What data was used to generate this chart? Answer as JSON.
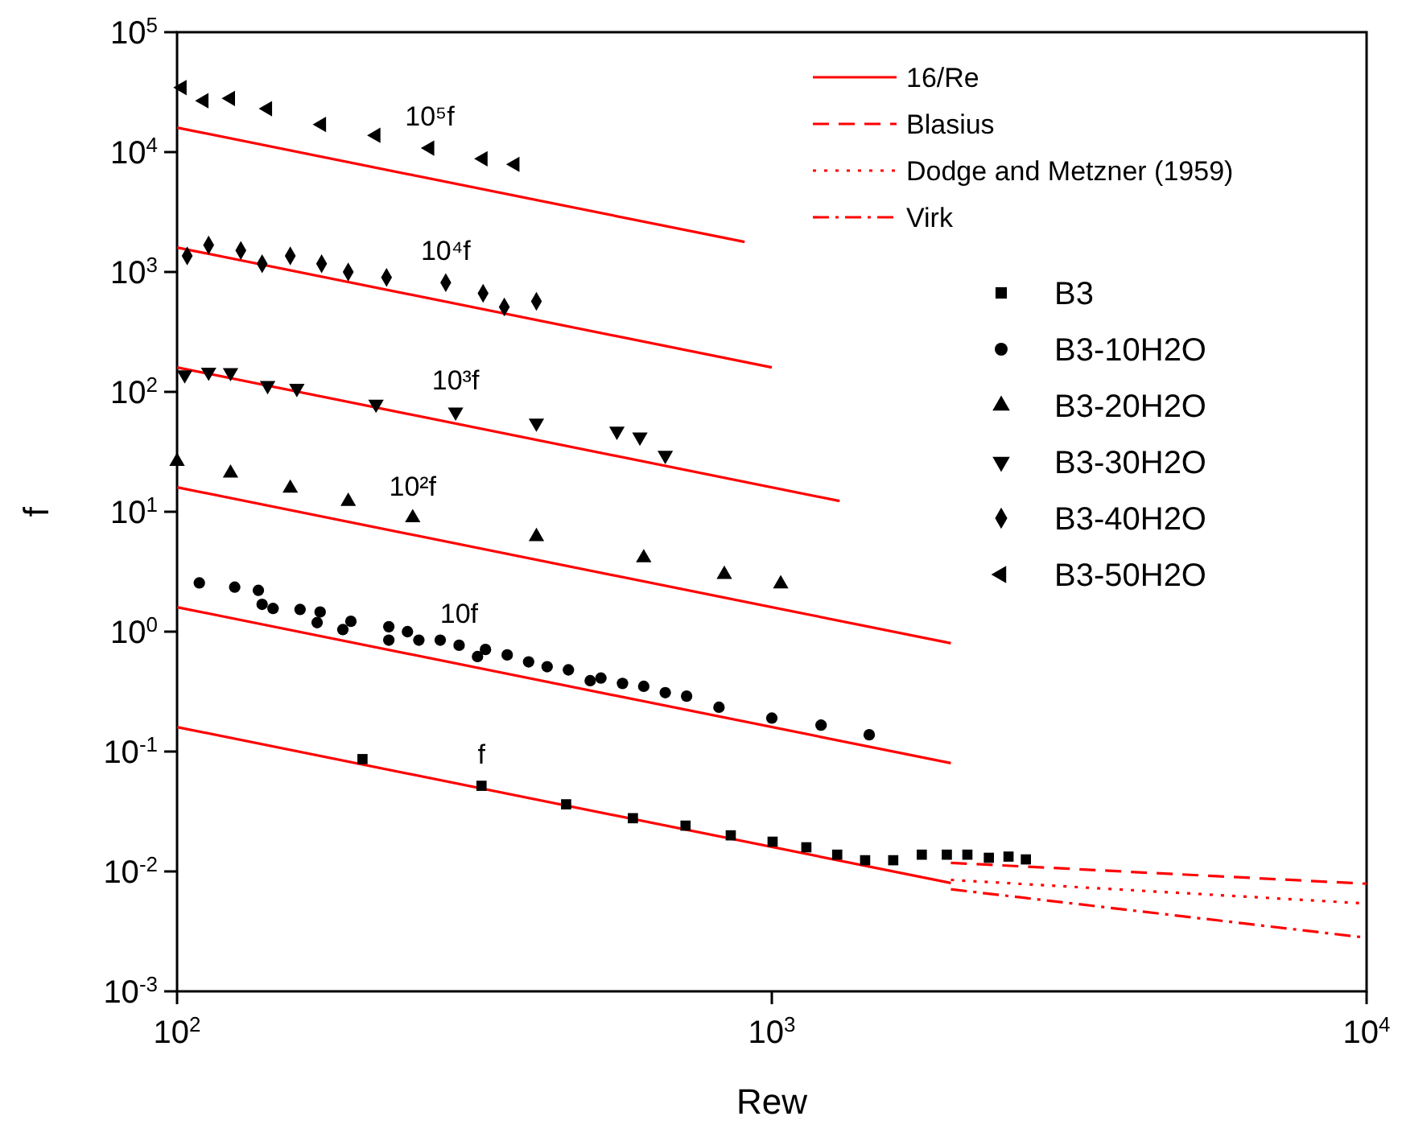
{
  "chart_data": {
    "type": "scatter",
    "xlabel": "Rew",
    "ylabel": "f",
    "log": "xy",
    "legend": "top right",
    "xlim": [
      100,
      10000
    ],
    "ylim": [
      0.001,
      100000
    ],
    "xticks": [
      {
        "value": 100,
        "label": "10$^{2}$"
      },
      {
        "value": 1000,
        "label": "10$^{3}$"
      },
      {
        "value": 10000,
        "label": "10$^{4}$"
      }
    ],
    "yticks": [
      {
        "value": 0.001,
        "label": "10$^{-3}$"
      },
      {
        "value": 0.01,
        "label": "10$^{-2}$"
      },
      {
        "value": 0.1,
        "label": "10$^{-1}$"
      },
      {
        "value": 1,
        "label": "10$^{0}$"
      },
      {
        "value": 10,
        "label": "10$^{1}$"
      },
      {
        "value": 100,
        "label": "10$^{2}$"
      },
      {
        "value": 1000,
        "label": "10$^{3}$"
      },
      {
        "value": 10000,
        "label": "10$^{4}$"
      },
      {
        "value": 100000,
        "label": "10$^{5}$"
      }
    ],
    "series": [
      {
        "name": "16/Re",
        "type": "line",
        "line_style": "solid",
        "color": "#ff0000",
        "x": [
          100,
          2000
        ],
        "values": [
          0.16,
          0.008
        ]
      },
      {
        "type": "line",
        "line_style": "solid",
        "color": "#ff0000",
        "x": [
          100,
          2000
        ],
        "values": [
          1.6,
          0.08
        ]
      },
      {
        "type": "line",
        "line_style": "solid",
        "color": "#ff0000",
        "x": [
          100,
          2000
        ],
        "values": [
          16,
          0.8
        ]
      },
      {
        "type": "line",
        "line_style": "solid",
        "color": "#ff0000",
        "x": [
          100,
          1300
        ],
        "values": [
          160,
          12.3
        ]
      },
      {
        "type": "line",
        "line_style": "solid",
        "color": "#ff0000",
        "x": [
          100,
          1000
        ],
        "values": [
          1600,
          160
        ]
      },
      {
        "type": "line",
        "line_style": "solid",
        "color": "#ff0000",
        "x": [
          100,
          900
        ],
        "values": [
          16000,
          1780
        ]
      },
      {
        "name": "Blasius",
        "type": "line",
        "line_style": "dashed",
        "color": "#ff0000",
        "x": [
          2000,
          10000
        ],
        "values": [
          0.0118,
          0.0079
        ]
      },
      {
        "name": "Dodge and Metzner (1959)",
        "type": "line",
        "line_style": "dotted",
        "color": "#ff0000",
        "x": [
          2000,
          10000
        ],
        "values": [
          0.0085,
          0.0054
        ]
      },
      {
        "name": "Virk",
        "type": "line",
        "line_style": "dashdot",
        "color": "#ff0000",
        "x": [
          2000,
          10000
        ],
        "values": [
          0.0071,
          0.0028
        ]
      },
      {
        "name": "B3",
        "marker": "square",
        "color": "#000000",
        "x": [
          205,
          325,
          451,
          584,
          716,
          853,
          1003,
          1143,
          1288,
          1435,
          1600,
          1787,
          1969,
          2132,
          2317,
          2500,
          2674
        ],
        "values": [
          0.0865,
          0.0518,
          0.0363,
          0.0278,
          0.0241,
          0.02,
          0.0177,
          0.0159,
          0.0138,
          0.0124,
          0.0124,
          0.0138,
          0.0138,
          0.0138,
          0.013,
          0.0133,
          0.0126
        ]
      },
      {
        "name": "B3-10H2O",
        "marker": "circle",
        "color": "#000000",
        "x": [
          109,
          125,
          137,
          139,
          145,
          161,
          174,
          172,
          190,
          196,
          227,
          227,
          244,
          255,
          277,
          298,
          320,
          330,
          359,
          390,
          419,
          455,
          495,
          516,
          561,
          609,
          662,
          719,
          815,
          1000,
          1210,
          1458
        ],
        "values": [
          2.55,
          2.35,
          2.21,
          1.69,
          1.56,
          1.53,
          1.46,
          1.19,
          1.04,
          1.22,
          1.1,
          0.85,
          1.0,
          0.85,
          0.85,
          0.77,
          0.62,
          0.71,
          0.64,
          0.56,
          0.51,
          0.48,
          0.39,
          0.41,
          0.37,
          0.35,
          0.31,
          0.29,
          0.234,
          0.19,
          0.166,
          0.138
        ]
      },
      {
        "name": "B3-20H2O",
        "marker": "triangle",
        "color": "#000000",
        "x": [
          100,
          123,
          155,
          194,
          249,
          402,
          609,
          832,
          1035
        ],
        "values": [
          26.3,
          21,
          15.7,
          12.2,
          8.9,
          6.2,
          4.13,
          3.0,
          2.5
        ]
      },
      {
        "name": "B3-30H2O",
        "marker": "triangle-down",
        "color": "#000000",
        "x": [
          103,
          113,
          123,
          142,
          159,
          216,
          294,
          402,
          549,
          600,
          662
        ],
        "values": [
          139,
          146,
          145,
          113,
          107,
          79,
          68,
          55,
          47,
          42,
          29.6
        ]
      },
      {
        "name": "B3-40H2O",
        "marker": "diamond",
        "color": "#000000",
        "x": [
          104,
          113,
          128,
          139,
          155,
          175,
          194,
          225,
          283,
          327,
          355,
          402
        ],
        "values": [
          1360,
          1675,
          1510,
          1170,
          1360,
          1170,
          1000,
          900,
          815,
          665,
          510,
          569
        ]
      },
      {
        "name": "B3-50H2O",
        "marker": "triangle-left",
        "color": "#000000",
        "x": [
          102,
          111,
          123,
          142,
          175,
          216,
          266,
          327,
          370
        ],
        "values": [
          34500,
          26800,
          28000,
          23000,
          17000,
          13800,
          10800,
          8800,
          7900
        ]
      }
    ],
    "annotations": [
      {
        "text": "10⁵f",
        "x": 266,
        "y": 10800
      },
      {
        "text": "10⁴f",
        "x": 283,
        "y": 815
      },
      {
        "text": "10³f",
        "x": 294,
        "y": 68
      },
      {
        "text": "10²f",
        "x": 249,
        "y": 8.9
      },
      {
        "text": "10f",
        "x": 298,
        "y": 0.77
      },
      {
        "text": "f",
        "x": 325,
        "y": 0.0518
      }
    ]
  }
}
